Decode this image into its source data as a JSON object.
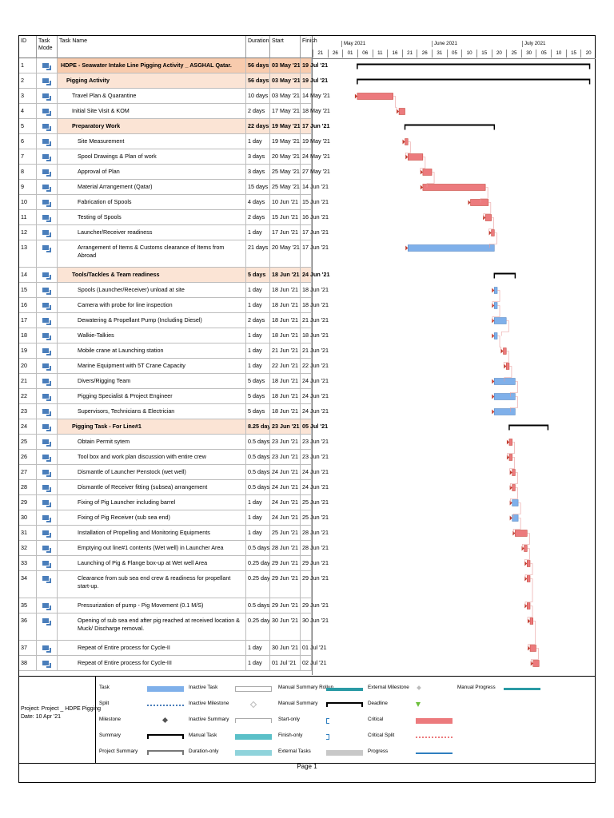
{
  "table_header": {
    "id": "ID",
    "task_mode": "Task Mode",
    "task_name": "Task Name",
    "duration": "Duration",
    "start": "Start",
    "finish": "Finish"
  },
  "timescale": {
    "months": [
      "May 2021",
      "June 2021",
      "July 2021"
    ],
    "days": [
      "21",
      "26",
      "01",
      "06",
      "11",
      "16",
      "21",
      "26",
      "31",
      "05",
      "10",
      "15",
      "20",
      "25",
      "30",
      "05",
      "10",
      "15",
      "20"
    ]
  },
  "tasks": [
    {
      "id": "1",
      "name": "HDPE - Seawater Intake Line Pigging Activity _ ASGHAL Qatar.",
      "duration": "56 days",
      "start": "03 May '21",
      "finish": "19 Jul '21",
      "kind": "project",
      "indent": 0
    },
    {
      "id": "2",
      "name": "Pigging Activity",
      "duration": "56 days",
      "start": "03 May '21",
      "finish": "19 Jul '21",
      "kind": "summary",
      "indent": 1
    },
    {
      "id": "3",
      "name": "Travel Plan & Quarantine",
      "duration": "10 days",
      "start": "03 May '21",
      "finish": "14 May '21",
      "kind": "task",
      "indent": 2
    },
    {
      "id": "4",
      "name": "Initial Site Visit & KOM",
      "duration": "2 days",
      "start": "17 May '21",
      "finish": "18 May '21",
      "kind": "task",
      "indent": 2
    },
    {
      "id": "5",
      "name": "Preparatory Work",
      "duration": "22 days",
      "start": "19 May '21",
      "finish": "17 Jun '21",
      "kind": "summary",
      "indent": 2
    },
    {
      "id": "6",
      "name": "Site Measurement",
      "duration": "1 day",
      "start": "19 May '21",
      "finish": "19 May '21",
      "kind": "task",
      "indent": 3
    },
    {
      "id": "7",
      "name": "Spool Drawings & Plan of work",
      "duration": "3 days",
      "start": "20 May '21",
      "finish": "24 May '21",
      "kind": "task",
      "indent": 3
    },
    {
      "id": "8",
      "name": "Approval of Plan",
      "duration": "3 days",
      "start": "25 May '21",
      "finish": "27 May '21",
      "kind": "task",
      "indent": 3
    },
    {
      "id": "9",
      "name": "Material Arrangement (Qatar)",
      "duration": "15 days",
      "start": "25 May '21",
      "finish": "14 Jun '21",
      "kind": "task",
      "indent": 3
    },
    {
      "id": "10",
      "name": "Fabrication of Spools",
      "duration": "4 days",
      "start": "10 Jun '21",
      "finish": "15 Jun '21",
      "kind": "task",
      "indent": 3
    },
    {
      "id": "11",
      "name": "Testing of Spools",
      "duration": "2 days",
      "start": "15 Jun '21",
      "finish": "16 Jun '21",
      "kind": "task",
      "indent": 3
    },
    {
      "id": "12",
      "name": "Launcher/Receiver readiness",
      "duration": "1 day",
      "start": "17 Jun '21",
      "finish": "17 Jun '21",
      "kind": "task",
      "indent": 3
    },
    {
      "id": "13",
      "name": "Arrangement of Items & Customs clearance of Items from Abroad",
      "duration": "21 days",
      "start": "20 May '21",
      "finish": "17 Jun '21",
      "kind": "task",
      "indent": 3
    },
    {
      "id": "14",
      "name": "Tools/Tackles & Team readiness",
      "duration": "5 days",
      "start": "18 Jun '21",
      "finish": "24 Jun '21",
      "kind": "summary",
      "indent": 2
    },
    {
      "id": "15",
      "name": "Spools (Launcher/Receiver) unload at site",
      "duration": "1 day",
      "start": "18 Jun '21",
      "finish": "18 Jun '21",
      "kind": "task",
      "indent": 3
    },
    {
      "id": "16",
      "name": "Camera with probe for line inspection",
      "duration": "1 day",
      "start": "18 Jun '21",
      "finish": "18 Jun '21",
      "kind": "task",
      "indent": 3
    },
    {
      "id": "17",
      "name": "Dewatering & Propellant Pump (Including Diesel)",
      "duration": "2 days",
      "start": "18 Jun '21",
      "finish": "21 Jun '21",
      "kind": "task",
      "indent": 3
    },
    {
      "id": "18",
      "name": "Walkie-Talkies",
      "duration": "1 day",
      "start": "18 Jun '21",
      "finish": "18 Jun '21",
      "kind": "task",
      "indent": 3
    },
    {
      "id": "19",
      "name": "Mobile crane at Launching station",
      "duration": "1 day",
      "start": "21 Jun '21",
      "finish": "21 Jun '21",
      "kind": "task",
      "indent": 3
    },
    {
      "id": "20",
      "name": "Marine Equipment with 5T Crane Capacity",
      "duration": "1 day",
      "start": "22 Jun '21",
      "finish": "22 Jun '21",
      "kind": "task",
      "indent": 3
    },
    {
      "id": "21",
      "name": "Divers/Rigging Team",
      "duration": "5 days",
      "start": "18 Jun '21",
      "finish": "24 Jun '21",
      "kind": "task",
      "indent": 3
    },
    {
      "id": "22",
      "name": "Pigging Specialist & Project Engineer",
      "duration": "5 days",
      "start": "18 Jun '21",
      "finish": "24 Jun '21",
      "kind": "task",
      "indent": 3
    },
    {
      "id": "23",
      "name": "Supervisors, Technicians & Electrician",
      "duration": "5 days",
      "start": "18 Jun '21",
      "finish": "24 Jun '21",
      "kind": "task",
      "indent": 3
    },
    {
      "id": "24",
      "name": "Pigging Task - For Line#1",
      "duration": "8.25 days",
      "start": "23 Jun '21",
      "finish": "05 Jul '21",
      "kind": "summary",
      "indent": 2
    },
    {
      "id": "25",
      "name": "Obtain Permit sytem",
      "duration": "0.5 days",
      "start": "23 Jun '21",
      "finish": "23 Jun '21",
      "kind": "task",
      "indent": 3
    },
    {
      "id": "26",
      "name": "Tool box and work plan discussion with entire crew",
      "duration": "0.5 days",
      "start": "23 Jun '21",
      "finish": "23 Jun '21",
      "kind": "task",
      "indent": 3
    },
    {
      "id": "27",
      "name": "Dismantle of Launcher Penstock (wet well)",
      "duration": "0.5 days",
      "start": "24 Jun '21",
      "finish": "24 Jun '21",
      "kind": "task",
      "indent": 3
    },
    {
      "id": "28",
      "name": "Dismantle of Receiver fitting (subsea) arrangement",
      "duration": "0.5 days",
      "start": "24 Jun '21",
      "finish": "24 Jun '21",
      "kind": "task",
      "indent": 3
    },
    {
      "id": "29",
      "name": "Fixing of Pig Launcher including barrel",
      "duration": "1 day",
      "start": "24 Jun '21",
      "finish": "25 Jun '21",
      "kind": "task",
      "indent": 3
    },
    {
      "id": "30",
      "name": "Fixing of Pig Receiver (sub sea end)",
      "duration": "1 day",
      "start": "24 Jun '21",
      "finish": "25 Jun '21",
      "kind": "task",
      "indent": 3
    },
    {
      "id": "31",
      "name": "Installation of Propelling and Monitoring Equipments",
      "duration": "1 day",
      "start": "25 Jun '21",
      "finish": "28 Jun '21",
      "kind": "task",
      "indent": 3
    },
    {
      "id": "32",
      "name": "Emptying out line#1 contents (Wet well) in Launcher Area",
      "duration": "0.5 days",
      "start": "28 Jun '21",
      "finish": "28 Jun '21",
      "kind": "task",
      "indent": 3
    },
    {
      "id": "33",
      "name": "Launching of Pig & Flange box-up at Wet well Area",
      "duration": "0.25 days",
      "start": "29 Jun '21",
      "finish": "29 Jun '21",
      "kind": "task",
      "indent": 3
    },
    {
      "id": "34",
      "name": "Clearance from sub sea end crew & readiness for propellant start-up.",
      "duration": "0.25 days",
      "start": "29 Jun '21",
      "finish": "29 Jun '21",
      "kind": "task",
      "indent": 3
    },
    {
      "id": "35",
      "name": "Pressurization of pump - Pig Movement (0.1 M/S)",
      "duration": "0.5 days",
      "start": "29 Jun '21",
      "finish": "29 Jun '21",
      "kind": "task",
      "indent": 3
    },
    {
      "id": "36",
      "name": "Opening of sub sea end after pig reached at received location & Muck/ Discharge removal.",
      "duration": "0.25 days",
      "start": "30 Jun '21",
      "finish": "30 Jun '21",
      "kind": "task",
      "indent": 3
    },
    {
      "id": "37",
      "name": "Repeat of Entire process for Cycle-II",
      "duration": "1 day",
      "start": "30 Jun '21",
      "finish": "01 Jul '21",
      "kind": "task",
      "indent": 3
    },
    {
      "id": "38",
      "name": "Repeat of Entire process for Cycle-III",
      "duration": "1 day",
      "start": "01 Jul '21",
      "finish": "02 Jul '21",
      "kind": "task",
      "indent": 3
    }
  ],
  "legend": {
    "project_info": "Project: Project _ HDPE Pigging\nDate: 10 Apr '21",
    "items": [
      {
        "label": "Task",
        "symbol": "task-bar"
      },
      {
        "label": "Split",
        "symbol": "split-line"
      },
      {
        "label": "Milestone",
        "symbol": "milestone-diamond"
      },
      {
        "label": "Summary",
        "symbol": "summary-bracket"
      },
      {
        "label": "Project Summary",
        "symbol": "project-summary-bracket"
      },
      {
        "label": "Inactive Task",
        "symbol": "inactive-task-bar"
      },
      {
        "label": "Inactive Milestone",
        "symbol": "inactive-milestone-diamond"
      },
      {
        "label": "Inactive Summary",
        "symbol": "inactive-summary-bracket"
      },
      {
        "label": "Manual Task",
        "symbol": "manual-task-bar"
      },
      {
        "label": "Duration-only",
        "symbol": "duration-only-bar"
      },
      {
        "label": "Manual Summary Rollup",
        "symbol": "manual-summary-rollup-bar"
      },
      {
        "label": "Manual Summary",
        "symbol": "manual-summary-bracket"
      },
      {
        "label": "Start-only",
        "symbol": "start-only-bracket"
      },
      {
        "label": "Finish-only",
        "symbol": "finish-only-bracket"
      },
      {
        "label": "External Tasks",
        "symbol": "external-tasks-bar"
      },
      {
        "label": "External Milestone",
        "symbol": "external-milestone-diamond"
      },
      {
        "label": "Deadline",
        "symbol": "deadline-arrow"
      },
      {
        "label": "Critical",
        "symbol": "critical-bar"
      },
      {
        "label": "Critical Split",
        "symbol": "critical-split-line"
      },
      {
        "label": "Progress",
        "symbol": "progress-line"
      },
      {
        "label": "Manual Progress",
        "symbol": "manual-progress-line"
      }
    ]
  },
  "footer": {
    "page": "Page 1"
  },
  "colors": {
    "summary_row": "#fbe4d5",
    "project_row": "#f8cbad",
    "critical": "#ec7a7d",
    "critical_edge": "#c0392b",
    "task": "#7fb0ea",
    "task_edge": "#4a7ebb",
    "summary_bracket": "#000000",
    "manual": "#5bc0c8",
    "progress": "#2f7fbf"
  }
}
